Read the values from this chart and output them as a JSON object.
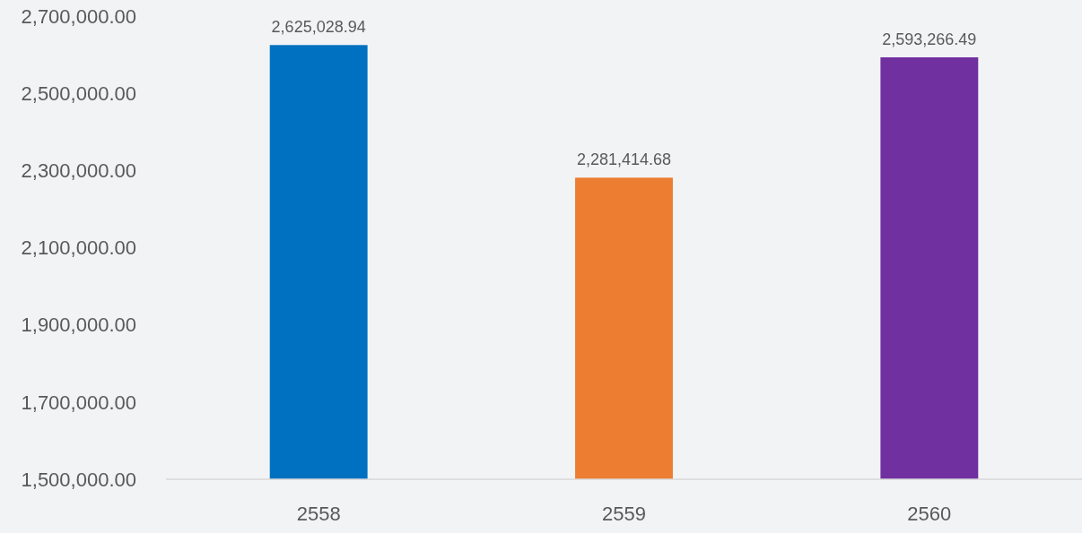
{
  "chart_data": {
    "type": "bar",
    "categories": [
      "2558",
      "2559",
      "2560"
    ],
    "values": [
      2625028.94,
      2281414.68,
      2593266.49
    ],
    "colors": [
      "#0070c0",
      "#ed7d31",
      "#7030a0"
    ],
    "ylim": [
      1500000,
      2700000
    ],
    "yticks": [
      {
        "value": 1500000,
        "label": "1,500,000.00"
      },
      {
        "value": 1700000,
        "label": "1,700,000.00"
      },
      {
        "value": 1900000,
        "label": "1,900,000.00"
      },
      {
        "value": 2100000,
        "label": "2,100,000.00"
      },
      {
        "value": 2300000,
        "label": "2,300,000.00"
      },
      {
        "value": 2500000,
        "label": "2,500,000.00"
      },
      {
        "value": 2700000,
        "label": "2,700,000.00"
      }
    ],
    "value_labels": [
      "2,625,028.94",
      "2,281,414.68",
      "2,593,266.49"
    ],
    "grid": false
  }
}
